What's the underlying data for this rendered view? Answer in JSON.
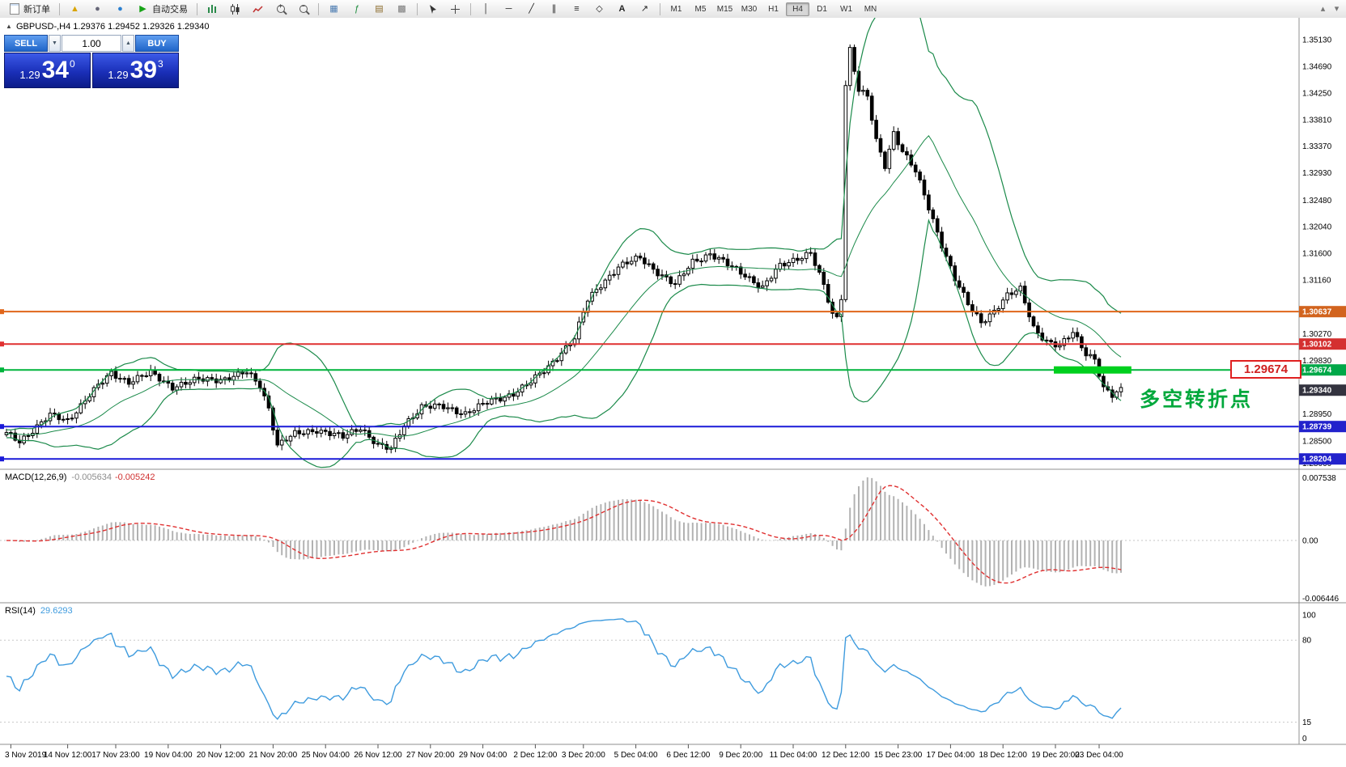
{
  "toolbar": {
    "new_order_label": "新订单",
    "autotrading_label": "自动交易",
    "timeframes": [
      "M1",
      "M5",
      "M15",
      "M30",
      "H1",
      "H4",
      "D1",
      "W1",
      "MN"
    ],
    "active_timeframe": "H4"
  },
  "trade_panel": {
    "sell_label": "SELL",
    "buy_label": "BUY",
    "volume": "1.00",
    "sell_price_prefix": "1.29",
    "sell_price_big": "34",
    "sell_price_sup": "0",
    "buy_price_prefix": "1.29",
    "buy_price_big": "39",
    "buy_price_sup": "3"
  },
  "chart_header": "GBPUSD-,H4  1.29376 1.29452 1.29326 1.29340",
  "annotation": {
    "text": "多空转折点",
    "price_label": "1.29674"
  },
  "chart_data": {
    "type": "candlestick",
    "symbol": "GBPUSD-",
    "timeframe": "H4",
    "ohlc": {
      "open": 1.29376,
      "high": 1.29452,
      "low": 1.29326,
      "close": 1.2934
    },
    "ylim": [
      1.2806,
      1.35491
    ],
    "price_axis_labels": [
      "1.35130",
      "1.34690",
      "1.34250",
      "1.33810",
      "1.33370",
      "1.32930",
      "1.32480",
      "1.32040",
      "1.31600",
      "1.31160",
      "1.30270",
      "1.29830",
      "1.28950",
      "1.28500",
      "1.28060"
    ],
    "price_tags": [
      {
        "value": "1.30637",
        "price": 1.30637,
        "color": "#D2641E"
      },
      {
        "value": "1.30102",
        "price": 1.30102,
        "color": "#D43030"
      },
      {
        "value": "1.29674",
        "price": 1.29674,
        "color": "#00A848"
      },
      {
        "value": "1.29340",
        "price": 1.2934,
        "color": "#33333F"
      },
      {
        "value": "1.28739",
        "price": 1.28739,
        "color": "#2222CC"
      },
      {
        "value": "1.28204",
        "price": 1.28204,
        "color": "#2222CC"
      }
    ],
    "hlines": [
      {
        "price": 1.30637,
        "color": "#E0661A",
        "width": 2
      },
      {
        "price": 1.30102,
        "color": "#E03030",
        "width": 2
      },
      {
        "price": 1.29674,
        "color": "#00B43C",
        "width": 2
      },
      {
        "price": 1.28739,
        "color": "#1A1AD8",
        "width": 2
      },
      {
        "price": 1.28204,
        "color": "#1A1AD8",
        "width": 2
      }
    ],
    "highlight_zone": {
      "price": 1.29674,
      "from_idx": 240,
      "to_idx": 257,
      "color": "#00D01E",
      "thickness": 9
    },
    "bollinger": {
      "period": 20,
      "deviation": 2,
      "color": "#1B8A4A"
    },
    "num_candles": 256,
    "close_anchors": [
      [
        0,
        1.2862
      ],
      [
        3,
        1.285
      ],
      [
        6,
        1.2868
      ],
      [
        10,
        1.2892
      ],
      [
        14,
        1.2884
      ],
      [
        19,
        1.2926
      ],
      [
        24,
        1.2962
      ],
      [
        28,
        1.2948
      ],
      [
        33,
        1.2962
      ],
      [
        38,
        1.294
      ],
      [
        44,
        1.2951
      ],
      [
        50,
        1.2953
      ],
      [
        55,
        1.2963
      ],
      [
        58,
        1.2942
      ],
      [
        60,
        1.2905
      ],
      [
        62,
        1.2843
      ],
      [
        66,
        1.2861
      ],
      [
        71,
        1.2869
      ],
      [
        77,
        1.2856
      ],
      [
        81,
        1.2873
      ],
      [
        85,
        1.2843
      ],
      [
        88,
        1.2836
      ],
      [
        91,
        1.2877
      ],
      [
        95,
        1.2907
      ],
      [
        100,
        1.2906
      ],
      [
        105,
        1.2896
      ],
      [
        110,
        1.2913
      ],
      [
        116,
        1.2929
      ],
      [
        120,
        1.2947
      ],
      [
        124,
        1.2973
      ],
      [
        127,
        1.2997
      ],
      [
        130,
        1.3019
      ],
      [
        133,
        1.3083
      ],
      [
        136,
        1.3109
      ],
      [
        140,
        1.3137
      ],
      [
        145,
        1.3153
      ],
      [
        149,
        1.3129
      ],
      [
        153,
        1.3107
      ],
      [
        157,
        1.3147
      ],
      [
        161,
        1.3159
      ],
      [
        165,
        1.3141
      ],
      [
        169,
        1.3125
      ],
      [
        173,
        1.3103
      ],
      [
        177,
        1.3139
      ],
      [
        181,
        1.3153
      ],
      [
        184,
        1.3161
      ],
      [
        187,
        1.3105
      ],
      [
        189,
        1.3059
      ],
      [
        190,
        1.3053
      ],
      [
        191,
        1.3089
      ],
      [
        192,
        1.344
      ],
      [
        193,
        1.3498
      ],
      [
        195,
        1.343
      ],
      [
        197,
        1.3418
      ],
      [
        199,
        1.3345
      ],
      [
        201,
        1.3305
      ],
      [
        203,
        1.336
      ],
      [
        205,
        1.333
      ],
      [
        208,
        1.3295
      ],
      [
        211,
        1.3235
      ],
      [
        214,
        1.3175
      ],
      [
        217,
        1.3118
      ],
      [
        220,
        1.3075
      ],
      [
        223,
        1.3046
      ],
      [
        226,
        1.3066
      ],
      [
        229,
        1.309
      ],
      [
        232,
        1.31
      ],
      [
        235,
        1.3038
      ],
      [
        238,
        1.3015
      ],
      [
        241,
        1.3005
      ],
      [
        244,
        1.303
      ],
      [
        247,
        1.2996
      ],
      [
        249,
        1.2986
      ],
      [
        251,
        1.2936
      ],
      [
        253,
        1.2924
      ],
      [
        255,
        1.2934
      ]
    ],
    "time_labels": [
      {
        "i": 1,
        "t": "3 Nov 2019"
      },
      {
        "i": 14,
        "t": "14 Nov 12:00"
      },
      {
        "i": 25,
        "t": "17 Nov 23:00"
      },
      {
        "i": 37,
        "t": "19 Nov 04:00"
      },
      {
        "i": 49,
        "t": "20 Nov 12:00"
      },
      {
        "i": 61,
        "t": "21 Nov 20:00"
      },
      {
        "i": 73,
        "t": "25 Nov 04:00"
      },
      {
        "i": 85,
        "t": "26 Nov 12:00"
      },
      {
        "i": 97,
        "t": "27 Nov 20:00"
      },
      {
        "i": 109,
        "t": "29 Nov 04:00"
      },
      {
        "i": 121,
        "t": "2 Dec 12:00"
      },
      {
        "i": 132,
        "t": "3 Dec 20:00"
      },
      {
        "i": 144,
        "t": "5 Dec 04:00"
      },
      {
        "i": 156,
        "t": "6 Dec 12:00"
      },
      {
        "i": 168,
        "t": "9 Dec 20:00"
      },
      {
        "i": 180,
        "t": "11 Dec 04:00"
      },
      {
        "i": 192,
        "t": "12 Dec 12:00"
      },
      {
        "i": 204,
        "t": "15 Dec 23:00"
      },
      {
        "i": 216,
        "t": "17 Dec 04:00"
      },
      {
        "i": 228,
        "t": "18 Dec 12:00"
      },
      {
        "i": 240,
        "t": "19 Dec 20:00"
      },
      {
        "i": 250,
        "t": "23 Dec 04:00"
      }
    ],
    "macd": {
      "title": "MACD(12,26,9)",
      "value_main": "-0.005634",
      "value_signal": "-0.005242",
      "axis_labels": [
        "0.007538",
        "0.00",
        "-0.006446"
      ],
      "histogram_color": "#b2b2b2",
      "signal_color": "#E03030"
    },
    "rsi": {
      "title": "RSI(14)",
      "value": "29.6293",
      "axis_labels": [
        "100",
        "80",
        "15",
        "0"
      ],
      "axis_values": [
        100,
        80,
        15,
        0
      ],
      "levels": [
        80,
        15
      ],
      "color": "#3E9BDE"
    }
  }
}
